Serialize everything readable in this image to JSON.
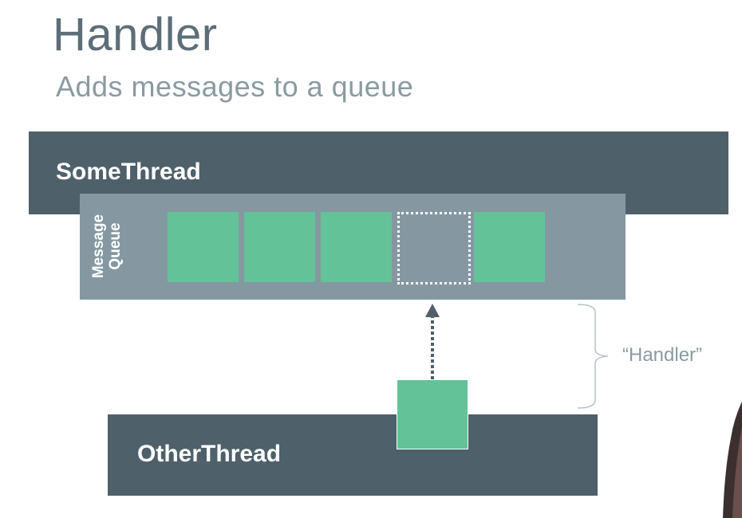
{
  "slide": {
    "title": "Handler",
    "subtitle": "Adds messages to a queue"
  },
  "diagram": {
    "some_thread_label": "SomeThread",
    "message_queue_label": "Message\nQueue",
    "other_thread_label": "OtherThread",
    "handler_annotation": "“Handler”",
    "queue_slots": [
      "filled",
      "filled",
      "filled",
      "empty",
      "filled"
    ],
    "colors": {
      "thread_bg": "#4e6069",
      "queue_bg": "#8598a2",
      "message": "#63c297",
      "title": "#5c6e78",
      "subtitle": "#8a9aa3"
    }
  }
}
